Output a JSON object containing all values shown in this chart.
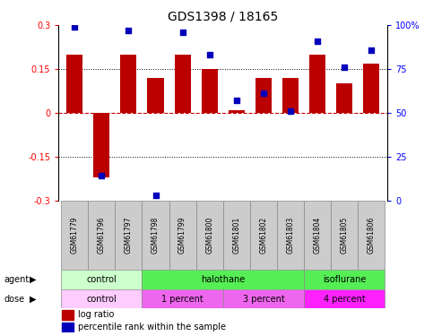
{
  "title": "GDS1398 / 18165",
  "samples": [
    "GSM61779",
    "GSM61796",
    "GSM61797",
    "GSM61798",
    "GSM61799",
    "GSM61800",
    "GSM61801",
    "GSM61802",
    "GSM61803",
    "GSM61804",
    "GSM61805",
    "GSM61806"
  ],
  "log_ratio": [
    0.2,
    -0.22,
    0.2,
    0.12,
    0.2,
    0.15,
    0.01,
    0.12,
    0.12,
    0.2,
    0.1,
    0.17
  ],
  "percentile_rank": [
    99,
    14,
    97,
    3,
    96,
    83,
    57,
    61,
    51,
    91,
    76,
    86
  ],
  "agent_groups": [
    {
      "label": "control",
      "start": 0,
      "end": 3,
      "color": "#BBFFBB"
    },
    {
      "label": "halothane",
      "start": 3,
      "end": 9,
      "color": "#44DD44"
    },
    {
      "label": "isoflurane",
      "start": 9,
      "end": 12,
      "color": "#44DD44"
    }
  ],
  "dose_groups": [
    {
      "label": "control",
      "start": 0,
      "end": 3,
      "color": "#FFBBFF"
    },
    {
      "label": "1 percent",
      "start": 3,
      "end": 6,
      "color": "#EE66EE"
    },
    {
      "label": "3 percent",
      "start": 6,
      "end": 9,
      "color": "#EE66EE"
    },
    {
      "label": "4 percent",
      "start": 9,
      "end": 12,
      "color": "#FF00FF"
    }
  ],
  "ylim_left": [
    -0.3,
    0.3
  ],
  "ylim_right": [
    0,
    100
  ],
  "yticks_left": [
    -0.3,
    -0.15,
    0,
    0.15,
    0.3
  ],
  "yticks_right": [
    0,
    25,
    50,
    75,
    100
  ],
  "ytick_labels_left": [
    "-0.3",
    "-0.15",
    "0",
    "0.15",
    "0.3"
  ],
  "ytick_labels_right": [
    "0",
    "25",
    "50",
    "75",
    "100%"
  ],
  "bar_color": "#BB0000",
  "dot_color": "#0000BB",
  "hline_color": "#CC0000",
  "bg_color": "white",
  "title_fontsize": 10,
  "tick_fontsize": 7,
  "label_fontsize": 7,
  "sample_fontsize": 5.5
}
